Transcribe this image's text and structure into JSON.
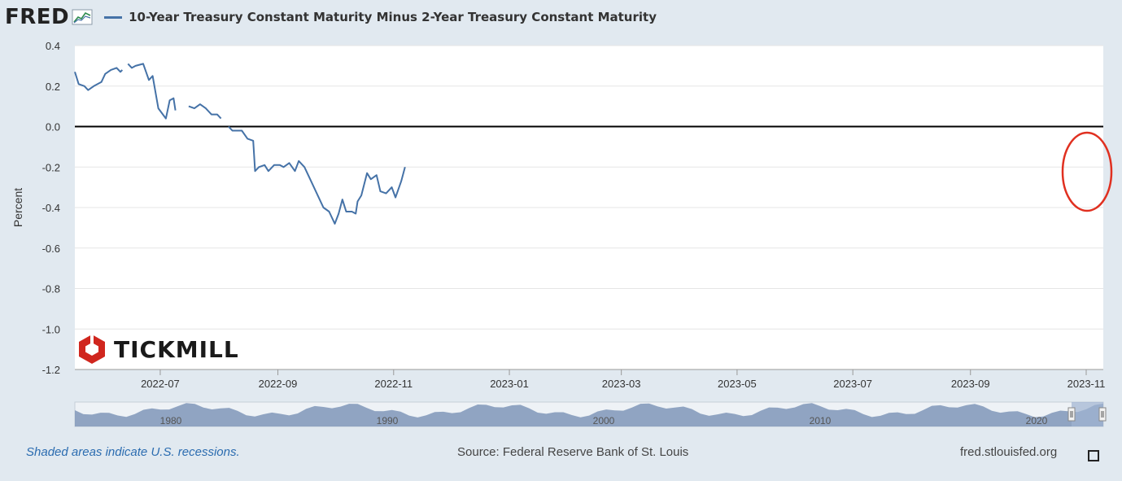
{
  "header": {
    "logo_text": "FRED",
    "series_title": "10-Year Treasury Constant Maturity Minus 2-Year Treasury Constant Maturity",
    "series_color": "#4572a7"
  },
  "watermark": {
    "text": "TICKMILL",
    "color": "#d0261e"
  },
  "footer": {
    "recession_note": "Shaded areas indicate U.S. recessions.",
    "source": "Source: Federal Reserve Bank of St. Louis",
    "site": "fred.stlouisfed.org"
  },
  "navigator": {
    "labels": [
      "1980",
      "1990",
      "2000",
      "2010",
      "2020"
    ]
  },
  "annotation": {
    "shape": "ellipse",
    "color": "#e03020",
    "marks": "latest values"
  },
  "chart_data": {
    "type": "line",
    "title": "10-Year Treasury Constant Maturity Minus 2-Year Treasury Constant Maturity",
    "xlabel": "",
    "ylabel": "Percent",
    "ylim": [
      -1.2,
      0.4
    ],
    "yticks": [
      "0.4",
      "0.2",
      "0.0",
      "-0.2",
      "-0.4",
      "-0.6",
      "-0.8",
      "-1.0",
      "-1.2"
    ],
    "xlim": [
      "2022-05-17",
      "2023-11-10"
    ],
    "xticks": [
      "2022-07",
      "2022-09",
      "2022-11",
      "2023-01",
      "2023-03",
      "2023-05",
      "2023-07",
      "2023-09",
      "2023-11"
    ],
    "grid": true,
    "zero_line": true,
    "series": [
      {
        "color": "#4572a7",
        "segments": [
          [
            [
              "2022-05-17",
              0.27
            ],
            [
              "2022-05-19",
              0.21
            ],
            [
              "2022-05-22",
              0.2
            ],
            [
              "2022-05-24",
              0.18
            ],
            [
              "2022-05-27",
              0.2
            ],
            [
              "2022-05-31",
              0.22
            ],
            [
              "2022-06-02",
              0.26
            ],
            [
              "2022-06-05",
              0.28
            ],
            [
              "2022-06-08",
              0.29
            ],
            [
              "2022-06-10",
              0.27
            ],
            [
              "2022-06-11",
              0.28
            ]
          ],
          [
            [
              "2022-06-14",
              0.31
            ],
            [
              "2022-06-16",
              0.29
            ],
            [
              "2022-06-18",
              0.3
            ],
            [
              "2022-06-22",
              0.31
            ],
            [
              "2022-06-25",
              0.23
            ],
            [
              "2022-06-27",
              0.25
            ],
            [
              "2022-06-30",
              0.09
            ],
            [
              "2022-07-04",
              0.04
            ],
            [
              "2022-07-06",
              0.13
            ],
            [
              "2022-07-08",
              0.14
            ],
            [
              "2022-07-09",
              0.08
            ]
          ],
          [
            [
              "2022-07-16",
              0.1
            ],
            [
              "2022-07-19",
              0.09
            ],
            [
              "2022-07-22",
              0.11
            ],
            [
              "2022-07-25",
              0.09
            ],
            [
              "2022-07-28",
              0.06
            ],
            [
              "2022-07-31",
              0.06
            ],
            [
              "2022-08-02",
              0.04
            ]
          ],
          [
            [
              "2022-08-06",
              0.0
            ],
            [
              "2022-08-08",
              -0.02
            ],
            [
              "2022-08-13",
              -0.02
            ],
            [
              "2022-08-16",
              -0.06
            ],
            [
              "2022-08-19",
              -0.07
            ],
            [
              "2022-08-20",
              -0.22
            ],
            [
              "2022-08-22",
              -0.2
            ],
            [
              "2022-08-25",
              -0.19
            ],
            [
              "2022-08-27",
              -0.22
            ],
            [
              "2022-08-30",
              -0.19
            ],
            [
              "2022-09-02",
              -0.19
            ],
            [
              "2022-09-04",
              -0.2
            ],
            [
              "2022-09-07",
              -0.18
            ],
            [
              "2022-09-10",
              -0.22
            ],
            [
              "2022-09-12",
              -0.17
            ],
            [
              "2022-09-15",
              -0.2
            ],
            [
              "2022-09-18",
              -0.26
            ],
            [
              "2022-09-22",
              -0.34
            ],
            [
              "2022-09-25",
              -0.4
            ],
            [
              "2022-09-28",
              -0.42
            ],
            [
              "2022-10-01",
              -0.48
            ],
            [
              "2022-10-03",
              -0.43
            ],
            [
              "2022-10-05",
              -0.36
            ],
            [
              "2022-10-07",
              -0.42
            ],
            [
              "2022-10-10",
              -0.42
            ],
            [
              "2022-10-12",
              -0.43
            ],
            [
              "2022-10-13",
              -0.37
            ],
            [
              "2022-10-15",
              -0.34
            ],
            [
              "2022-10-18",
              -0.23
            ],
            [
              "2022-10-20",
              -0.26
            ],
            [
              "2022-10-23",
              -0.24
            ],
            [
              "2022-10-25",
              -0.32
            ],
            [
              "2022-10-28",
              -0.33
            ],
            [
              "2022-10-31",
              -0.3
            ],
            [
              "2022-11-02",
              -0.35
            ],
            [
              "2022-11-05",
              -0.27
            ],
            [
              "2022-11-07",
              -0.2
            ]
          ]
        ]
      }
    ]
  }
}
